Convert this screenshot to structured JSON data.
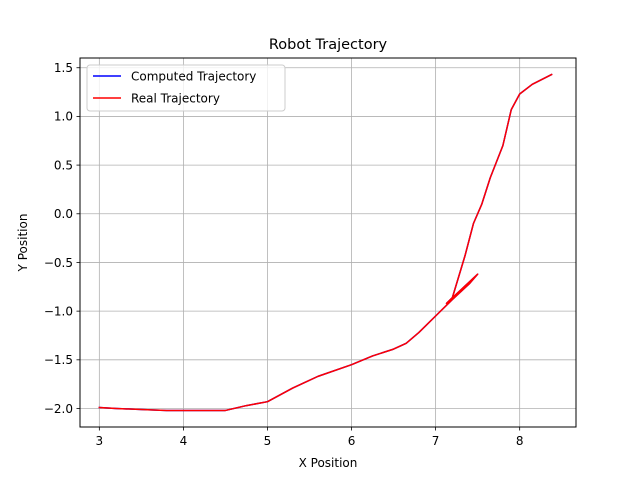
{
  "chart_data": {
    "type": "line",
    "title": "Robot Trajectory",
    "xlabel": "X Position",
    "ylabel": "Y Position",
    "xlim": [
      2.77,
      8.67
    ],
    "ylim": [
      -2.19,
      1.6
    ],
    "xticks": [
      3,
      4,
      5,
      6,
      7,
      8
    ],
    "xtick_labels": [
      "3",
      "4",
      "5",
      "6",
      "7",
      "8"
    ],
    "yticks": [
      -2.0,
      -1.5,
      -1.0,
      -0.5,
      0.0,
      0.5,
      1.0,
      1.5
    ],
    "ytick_labels": [
      "−2.0",
      "−1.5",
      "−1.0",
      "−0.5",
      "0.0",
      "0.5",
      "1.0",
      "1.5"
    ],
    "grid": true,
    "legend_position": "top-left",
    "series": [
      {
        "name": "Computed Trajectory",
        "color": "#0000ff",
        "x": [
          3.0,
          3.2,
          3.5,
          3.8,
          4.0,
          4.3,
          4.5,
          4.75,
          5.0,
          5.3,
          5.6,
          6.0,
          6.25,
          6.5,
          6.65,
          6.8,
          7.0,
          7.2,
          7.4,
          7.5,
          7.13,
          7.2,
          7.35,
          7.45,
          7.55,
          7.65,
          7.8,
          7.9,
          8.0,
          8.15,
          8.38
        ],
        "y": [
          -1.99,
          -2.0,
          -2.01,
          -2.02,
          -2.02,
          -2.02,
          -2.02,
          -1.97,
          -1.93,
          -1.79,
          -1.67,
          -1.55,
          -1.46,
          -1.39,
          -1.33,
          -1.22,
          -1.05,
          -0.88,
          -0.72,
          -0.62,
          -0.92,
          -0.86,
          -0.43,
          -0.1,
          0.1,
          0.37,
          0.7,
          1.07,
          1.23,
          1.33,
          1.43
        ]
      },
      {
        "name": "Real Trajectory",
        "color": "#ff0000",
        "x": [
          3.0,
          3.2,
          3.5,
          3.8,
          4.0,
          4.3,
          4.5,
          4.75,
          5.0,
          5.3,
          5.6,
          6.0,
          6.25,
          6.5,
          6.65,
          6.8,
          7.0,
          7.2,
          7.4,
          7.5,
          7.13,
          7.2,
          7.35,
          7.45,
          7.55,
          7.65,
          7.8,
          7.9,
          8.0,
          8.15,
          8.38
        ],
        "y": [
          -1.99,
          -2.0,
          -2.01,
          -2.02,
          -2.02,
          -2.02,
          -2.02,
          -1.97,
          -1.93,
          -1.79,
          -1.67,
          -1.55,
          -1.46,
          -1.39,
          -1.33,
          -1.22,
          -1.05,
          -0.88,
          -0.72,
          -0.62,
          -0.92,
          -0.86,
          -0.43,
          -0.1,
          0.1,
          0.37,
          0.7,
          1.07,
          1.23,
          1.33,
          1.43
        ]
      }
    ]
  }
}
